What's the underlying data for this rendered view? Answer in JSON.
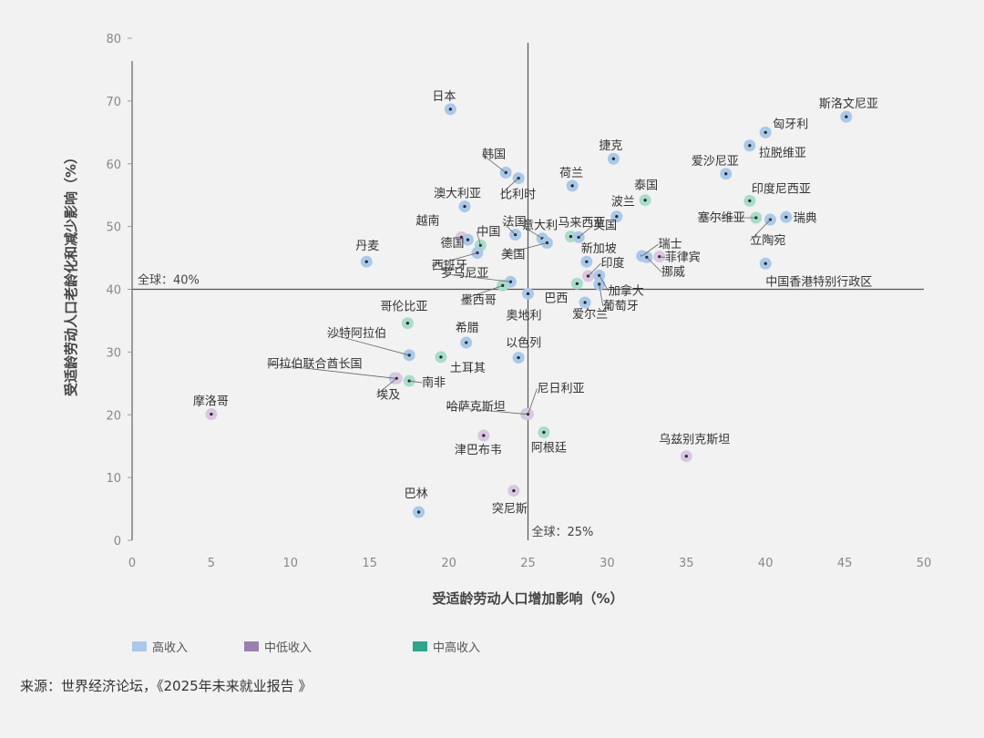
{
  "chart_data": {
    "type": "scatter",
    "xlabel": "受适龄劳动人口增加影响（%）",
    "ylabel": "受适龄劳动人口老龄化和减少影响（%）",
    "xlim": [
      0,
      50
    ],
    "ylim": [
      0,
      80
    ],
    "xticks": [
      0,
      5,
      10,
      15,
      20,
      25,
      30,
      35,
      40,
      45,
      50
    ],
    "yticks": [
      0,
      10,
      20,
      30,
      40,
      50,
      60,
      70,
      80
    ],
    "grid": false,
    "legend_position": "bottom",
    "reference_lines": [
      {
        "axis": "y",
        "value": 40,
        "label": "全球：40%"
      },
      {
        "axis": "x",
        "value": 25,
        "label": "全球：25%"
      }
    ],
    "categories": [
      {
        "key": "high",
        "name": "高收入",
        "color": "#a9c8ea",
        "dot": "#5b8fd6"
      },
      {
        "key": "lowmid",
        "name": "中低收入",
        "color": "#d9c6e0",
        "dot": "#9b7fb0"
      },
      {
        "key": "upmid",
        "name": "中高收入",
        "color": "#a8dccb",
        "dot": "#33a98a"
      }
    ],
    "points": [
      {
        "name": "斯洛文尼亚",
        "x": 45.1,
        "y": 67.5,
        "cat": "high"
      },
      {
        "name": "匈牙利",
        "x": 40.0,
        "y": 65.0,
        "cat": "high"
      },
      {
        "name": "拉脱维亚",
        "x": 39.0,
        "y": 62.9,
        "cat": "high"
      },
      {
        "name": "爱沙尼亚",
        "x": 37.5,
        "y": 58.4,
        "cat": "high"
      },
      {
        "name": "日本",
        "x": 20.1,
        "y": 68.7,
        "cat": "high"
      },
      {
        "name": "韩国",
        "x": 23.6,
        "y": 58.6,
        "cat": "high"
      },
      {
        "name": "比利时",
        "x": 24.4,
        "y": 57.7,
        "cat": "high"
      },
      {
        "name": "捷克",
        "x": 30.4,
        "y": 60.8,
        "cat": "high"
      },
      {
        "name": "荷兰",
        "x": 27.8,
        "y": 56.5,
        "cat": "high"
      },
      {
        "name": "泰国",
        "x": 32.4,
        "y": 54.2,
        "cat": "upmid"
      },
      {
        "name": "印度尼西亚",
        "x": 39.0,
        "y": 54.1,
        "cat": "upmid"
      },
      {
        "name": "塞尔维亚",
        "x": 39.4,
        "y": 51.4,
        "cat": "upmid"
      },
      {
        "name": "立陶宛",
        "x": 40.3,
        "y": 51.1,
        "cat": "high"
      },
      {
        "name": "瑞典",
        "x": 41.3,
        "y": 51.5,
        "cat": "high"
      },
      {
        "name": "澳大利亚",
        "x": 21.0,
        "y": 53.2,
        "cat": "high"
      },
      {
        "name": "波兰",
        "x": 30.6,
        "y": 51.6,
        "cat": "high"
      },
      {
        "name": "法国",
        "x": 24.2,
        "y": 48.7,
        "cat": "high"
      },
      {
        "name": "越南",
        "x": 20.8,
        "y": 48.3,
        "cat": "lowmid"
      },
      {
        "name": "德国",
        "x": 21.2,
        "y": 47.9,
        "cat": "high"
      },
      {
        "name": "中国",
        "x": 22.0,
        "y": 47.0,
        "cat": "upmid"
      },
      {
        "name": "西班牙",
        "x": 21.8,
        "y": 45.8,
        "cat": "high"
      },
      {
        "name": "意大利",
        "x": 25.9,
        "y": 48.1,
        "cat": "high"
      },
      {
        "name": "美国",
        "x": 26.2,
        "y": 47.4,
        "cat": "high"
      },
      {
        "name": "马来西亚",
        "x": 27.7,
        "y": 48.4,
        "cat": "upmid"
      },
      {
        "name": "英国",
        "x": 28.2,
        "y": 48.3,
        "cat": "high"
      },
      {
        "name": "新加坡",
        "x": 28.7,
        "y": 44.4,
        "cat": "high"
      },
      {
        "name": "瑞士",
        "x": 32.2,
        "y": 45.3,
        "cat": "high"
      },
      {
        "name": "菲律宾",
        "x": 33.3,
        "y": 45.2,
        "cat": "lowmid"
      },
      {
        "name": "挪威",
        "x": 32.5,
        "y": 45.1,
        "cat": "high"
      },
      {
        "name": "中国香港特别行政区",
        "x": 40.0,
        "y": 44.1,
        "cat": "high"
      },
      {
        "name": "丹麦",
        "x": 14.8,
        "y": 44.4,
        "cat": "high"
      },
      {
        "name": "罗马尼亚",
        "x": 23.9,
        "y": 41.2,
        "cat": "high"
      },
      {
        "name": "墨西哥",
        "x": 23.4,
        "y": 40.6,
        "cat": "upmid"
      },
      {
        "name": "印度",
        "x": 28.8,
        "y": 42.1,
        "cat": "lowmid"
      },
      {
        "name": "加拿大",
        "x": 29.5,
        "y": 42.2,
        "cat": "high"
      },
      {
        "name": "巴西",
        "x": 28.1,
        "y": 40.9,
        "cat": "upmid"
      },
      {
        "name": "葡萄牙",
        "x": 29.5,
        "y": 40.8,
        "cat": "high"
      },
      {
        "name": "奥地利",
        "x": 25.0,
        "y": 39.3,
        "cat": "high"
      },
      {
        "name": "爱尔兰",
        "x": 28.6,
        "y": 37.9,
        "cat": "high"
      },
      {
        "name": "哥伦比亚",
        "x": 17.4,
        "y": 34.6,
        "cat": "upmid"
      },
      {
        "name": "希腊",
        "x": 21.1,
        "y": 31.5,
        "cat": "high"
      },
      {
        "name": "沙特阿拉伯",
        "x": 17.5,
        "y": 29.5,
        "cat": "high"
      },
      {
        "name": "土耳其",
        "x": 19.5,
        "y": 29.2,
        "cat": "upmid"
      },
      {
        "name": "以色列",
        "x": 24.4,
        "y": 29.1,
        "cat": "high"
      },
      {
        "name": "阿拉伯联合酋长国",
        "x": 16.6,
        "y": 25.8,
        "cat": "high"
      },
      {
        "name": "埃及",
        "x": 16.7,
        "y": 25.8,
        "cat": "lowmid"
      },
      {
        "name": "南非",
        "x": 17.5,
        "y": 25.4,
        "cat": "upmid"
      },
      {
        "name": "摩洛哥",
        "x": 5.0,
        "y": 20.1,
        "cat": "lowmid"
      },
      {
        "name": "哈萨克斯坦",
        "x": 24.9,
        "y": 20.1,
        "cat": "upmid"
      },
      {
        "name": "尼日利亚",
        "x": 25.0,
        "y": 20.1,
        "cat": "lowmid"
      },
      {
        "name": "津巴布韦",
        "x": 22.2,
        "y": 16.7,
        "cat": "lowmid"
      },
      {
        "name": "阿根廷",
        "x": 26.0,
        "y": 17.2,
        "cat": "upmid"
      },
      {
        "name": "乌兹别克斯坦",
        "x": 35.0,
        "y": 13.4,
        "cat": "lowmid"
      },
      {
        "name": "巴林",
        "x": 18.1,
        "y": 4.5,
        "cat": "high"
      },
      {
        "name": "突尼斯",
        "x": 24.1,
        "y": 7.9,
        "cat": "lowmid"
      }
    ]
  },
  "legend": {
    "high": "高收入",
    "lowmid": "中低收入",
    "upmid": "中高收入"
  },
  "source": "来源：世界经济论坛，《2025年未来就业报告 》"
}
